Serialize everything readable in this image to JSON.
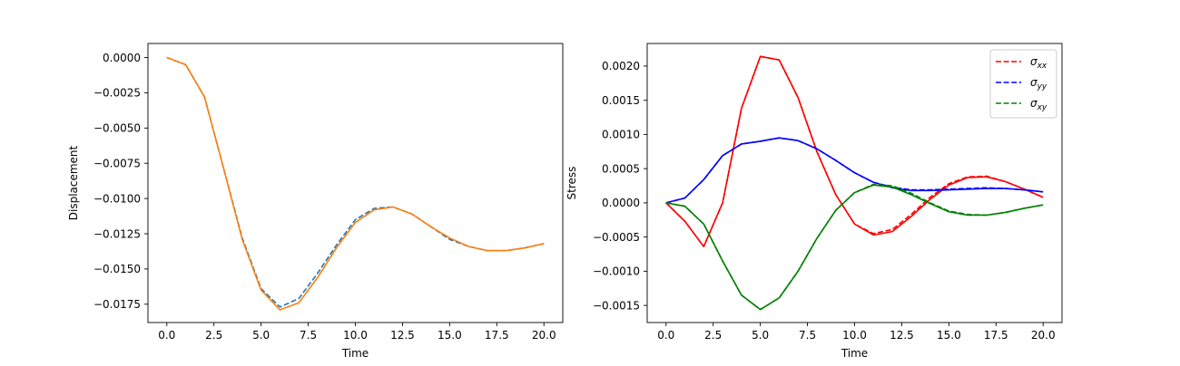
{
  "chart_data": [
    {
      "type": "line",
      "xlabel": "Time",
      "ylabel": "Displacement",
      "xlim": [
        -1.0,
        21.0
      ],
      "ylim": [
        -0.0188,
        0.001
      ],
      "xticks": [
        0.0,
        2.5,
        5.0,
        7.5,
        10.0,
        12.5,
        15.0,
        17.5,
        20.0
      ],
      "xtick_labels": [
        "0.0",
        "2.5",
        "5.0",
        "7.5",
        "10.0",
        "12.5",
        "15.0",
        "17.5",
        "20.0"
      ],
      "yticks": [
        0.0,
        -0.0025,
        -0.005,
        -0.0075,
        -0.01,
        -0.0125,
        -0.015,
        -0.0175
      ],
      "ytick_labels": [
        "0.0000",
        "−0.0025",
        "−0.0050",
        "−0.0075",
        "−0.0100",
        "−0.0125",
        "−0.0150",
        "−0.0175"
      ],
      "grid": false,
      "x": [
        0,
        1,
        2,
        3,
        4,
        5,
        6,
        7,
        8,
        9,
        10,
        11,
        12,
        13,
        14,
        15,
        16,
        17,
        18,
        19,
        20
      ],
      "series": [
        {
          "color": "#1f77b4",
          "dash": "dashed",
          "values": [
            0.0,
            -0.0005,
            -0.0028,
            -0.0078,
            -0.0128,
            -0.0164,
            -0.0177,
            -0.0171,
            -0.0153,
            -0.0133,
            -0.0115,
            -0.0107,
            -0.0106,
            -0.0111,
            -0.012,
            -0.0129,
            -0.0134,
            -0.0137,
            -0.0137,
            -0.0135,
            -0.0132
          ]
        },
        {
          "color": "#ff7f0e",
          "dash": "solid",
          "values": [
            0.0,
            -0.0005,
            -0.0028,
            -0.0078,
            -0.0129,
            -0.0165,
            -0.0179,
            -0.0174,
            -0.0156,
            -0.0135,
            -0.0117,
            -0.0108,
            -0.0106,
            -0.0111,
            -0.012,
            -0.0128,
            -0.0134,
            -0.0137,
            -0.0137,
            -0.0135,
            -0.0132
          ]
        }
      ]
    },
    {
      "type": "line",
      "xlabel": "Time",
      "ylabel": "Stress",
      "xlim": [
        -1.0,
        21.0
      ],
      "ylim": [
        -0.00175,
        0.00233
      ],
      "xticks": [
        0.0,
        2.5,
        5.0,
        7.5,
        10.0,
        12.5,
        15.0,
        17.5,
        20.0
      ],
      "xtick_labels": [
        "0.0",
        "2.5",
        "5.0",
        "7.5",
        "10.0",
        "12.5",
        "15.0",
        "17.5",
        "20.0"
      ],
      "yticks": [
        0.002,
        0.0015,
        0.001,
        0.0005,
        0.0,
        -0.0005,
        -0.001,
        -0.0015
      ],
      "ytick_labels": [
        "0.0020",
        "0.0015",
        "0.0010",
        "0.0005",
        "0.0000",
        "−0.0005",
        "−0.0010",
        "−0.0015"
      ],
      "grid": false,
      "legend": {
        "position": "top-right",
        "entries": [
          {
            "sym": "σ",
            "sub": "xx",
            "color": "#ff0000"
          },
          {
            "sym": "σ",
            "sub": "yy",
            "color": "#0000ff"
          },
          {
            "sym": "σ",
            "sub": "xy",
            "color": "#008000"
          }
        ]
      },
      "x": [
        0,
        1,
        2,
        3,
        4,
        5,
        6,
        7,
        8,
        9,
        10,
        11,
        12,
        13,
        14,
        15,
        16,
        17,
        18,
        19,
        20
      ],
      "series": [
        {
          "color": "#ff0000",
          "dash": "solid",
          "values": [
            0.0,
            -0.00027,
            -0.00064,
            0.0,
            0.00138,
            0.00214,
            0.00209,
            0.00154,
            0.00075,
            0.00012,
            -0.00031,
            -0.00047,
            -0.00042,
            -0.0002,
            5e-05,
            0.00026,
            0.00037,
            0.00038,
            0.00031,
            0.0002,
            8e-05
          ]
        },
        {
          "color": "#ff0000",
          "dash": "dashed",
          "values": [
            0.0,
            -0.00027,
            -0.00064,
            0.0,
            0.00138,
            0.00214,
            0.00209,
            0.00154,
            0.00075,
            0.00012,
            -0.00031,
            -0.00045,
            -0.00039,
            -0.00017,
            8e-05,
            0.00028,
            0.00038,
            0.00039,
            0.00031,
            0.0002,
            8e-05
          ]
        },
        {
          "color": "#0000ff",
          "dash": "solid",
          "values": [
            0.0,
            7e-05,
            0.00034,
            0.00069,
            0.00086,
            0.0009,
            0.00095,
            0.00091,
            0.00079,
            0.00062,
            0.00044,
            0.0003,
            0.00022,
            0.00018,
            0.00018,
            0.00019,
            0.0002,
            0.00021,
            0.00021,
            0.00019,
            0.00016
          ]
        },
        {
          "color": "#0000ff",
          "dash": "dashed",
          "values": [
            0.0,
            7e-05,
            0.00034,
            0.00069,
            0.00086,
            0.0009,
            0.00095,
            0.00091,
            0.00079,
            0.00062,
            0.00044,
            0.0003,
            0.00023,
            0.00019,
            0.00019,
            0.0002,
            0.00021,
            0.00022,
            0.00021,
            0.00019,
            0.00016
          ]
        },
        {
          "color": "#008000",
          "dash": "solid",
          "values": [
            0.0,
            -5e-05,
            -0.00031,
            -0.00085,
            -0.00135,
            -0.00156,
            -0.00139,
            -0.001,
            -0.00052,
            -0.00011,
            0.00015,
            0.00026,
            0.00023,
            0.00012,
            -1e-05,
            -0.00013,
            -0.00018,
            -0.00018,
            -0.00014,
            -8e-05,
            -3e-05
          ]
        },
        {
          "color": "#008000",
          "dash": "dashed",
          "values": [
            0.0,
            -5e-05,
            -0.00031,
            -0.00085,
            -0.00135,
            -0.00156,
            -0.00139,
            -0.001,
            -0.00052,
            -0.00011,
            0.00015,
            0.00027,
            0.00025,
            0.00014,
            0.0,
            -0.00012,
            -0.00017,
            -0.00018,
            -0.00014,
            -8e-05,
            -3e-05
          ]
        }
      ]
    }
  ]
}
